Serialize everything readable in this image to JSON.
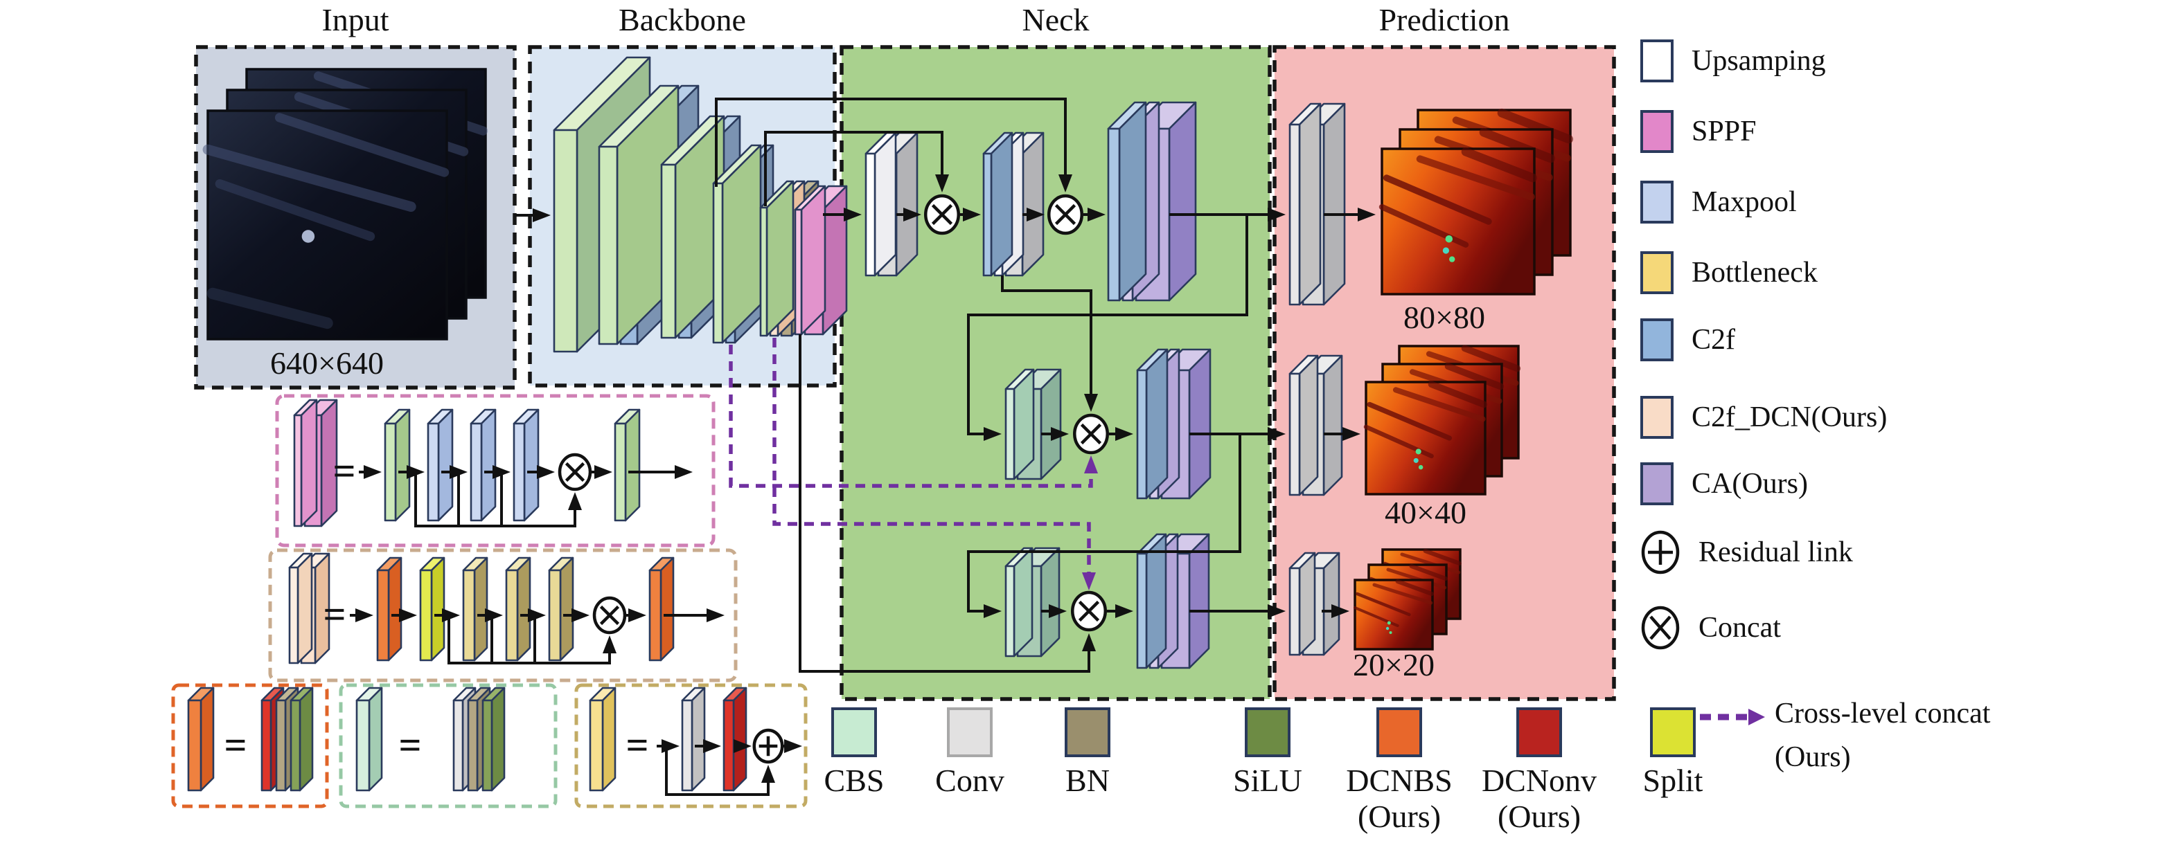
{
  "titles": {
    "input": "Input",
    "backbone": "Backbone",
    "neck": "Neck",
    "prediction": "Prediction"
  },
  "sizes": {
    "input": "640×640",
    "p80": "80×80",
    "p40": "40×40",
    "p20": "20×20"
  },
  "operators": {
    "equals": "=",
    "concat_symbol": "×",
    "residual_symbol": "+"
  },
  "legend_right": {
    "items": [
      {
        "label": "Upsamping",
        "swatch": "#ffffff"
      },
      {
        "label": "SPPF",
        "swatch": "#e287c9"
      },
      {
        "label": "Maxpool",
        "swatch": "#c3d2ee"
      },
      {
        "label": "Bottleneck",
        "swatch": "#f5d879"
      },
      {
        "label": "C2f",
        "swatch": "#92b5dc"
      },
      {
        "label": "C2f_DCN(Ours)",
        "swatch": "#f9dcc7"
      },
      {
        "label": "CA(Ours)",
        "swatch": "#b3a2d4"
      }
    ],
    "residual_label": "Residual link",
    "concat_label": "Concat",
    "cross_label_line1": "Cross-level concat",
    "cross_label_line2": "(Ours)"
  },
  "legend_bottom": {
    "items": [
      {
        "label": "CBS",
        "sub": "",
        "color": "#c7ebd2",
        "border": "#2a3a5c"
      },
      {
        "label": "Conv",
        "sub": "",
        "color": "#e2e1e1",
        "border": "#a8a8a8"
      },
      {
        "label": "BN",
        "sub": "",
        "color": "#9a8f6d",
        "border": "#2a3a5c"
      },
      {
        "label": "SiLU",
        "sub": "",
        "color": "#6d8b44",
        "border": "#2a3a5c"
      },
      {
        "label": "DCNBS",
        "sub": "(Ours)",
        "color": "#e8672b",
        "border": "#2a3a5c"
      },
      {
        "label": "DCNonv",
        "sub": "(Ours)",
        "color": "#b9231f",
        "border": "#2a3a5c"
      },
      {
        "label": "Split",
        "sub": "",
        "color": "#dce233",
        "border": "#2a3a5c"
      }
    ]
  },
  "colors": {
    "input_bg": "#ccd3e0",
    "backbone_bg": "#dae6f3",
    "neck_bg": "#a9d18e",
    "prediction_bg": "#f5baba",
    "cross_level_purple": "#7030a0",
    "upsampling": "#ffffff",
    "sppf": "#e287c9",
    "maxpool": "#c3d2ee",
    "bottleneck": "#f5d879",
    "c2f": "#92b5dc",
    "c2f_dcn": "#f9dcc7",
    "ca": "#b3a2d4",
    "cbs": "#c7ebd2",
    "conv": "#e2e1e1",
    "bn": "#9a8f6d",
    "silu": "#6d8b44",
    "dcnbs": "#e8672b",
    "dcnonv": "#b9231f",
    "split": "#dce233"
  }
}
